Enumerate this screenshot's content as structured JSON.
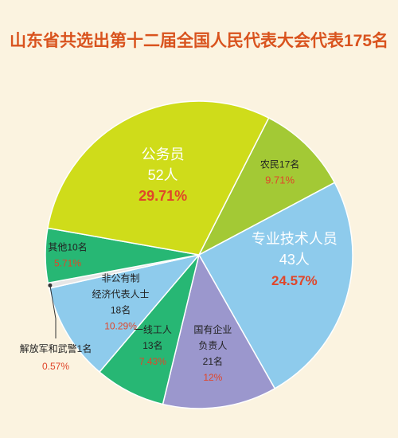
{
  "chart_data": {
    "type": "pie",
    "title": "山东省共选出第十二届全国人民代表大会代表175名",
    "slices": [
      {
        "name": "农民17名",
        "count": "17名",
        "value": 17,
        "percent": "9.71%",
        "color": "#a3c935"
      },
      {
        "name": "专业技术人员",
        "count": "43人",
        "value": 43,
        "percent": "24.57%",
        "color": "#8ecbec"
      },
      {
        "name": "国有企业负责人",
        "count": "21名",
        "value": 21,
        "percent": "12%",
        "color": "#9b97cd"
      },
      {
        "name": "一线工人",
        "count": "13名",
        "value": 13,
        "percent": "7.43%",
        "color": "#27b774"
      },
      {
        "name": "非公有制经济代表人士",
        "count": "18名",
        "value": 18,
        "percent": "10.29%",
        "color": "#8ecbec"
      },
      {
        "name": "解放军和武警1名",
        "count": "1名",
        "value": 1,
        "percent": "0.57%",
        "color": "#e6e6e6"
      },
      {
        "name": "其他10名",
        "count": "10名",
        "value": 10,
        "percent": "5.71%",
        "color": "#27b774"
      },
      {
        "name": "公务员",
        "count": "52人",
        "value": 52,
        "percent": "29.71%",
        "color": "#cfdc1a"
      }
    ],
    "label_colors": {
      "text": "#222222",
      "percent": "#e0462a"
    }
  }
}
